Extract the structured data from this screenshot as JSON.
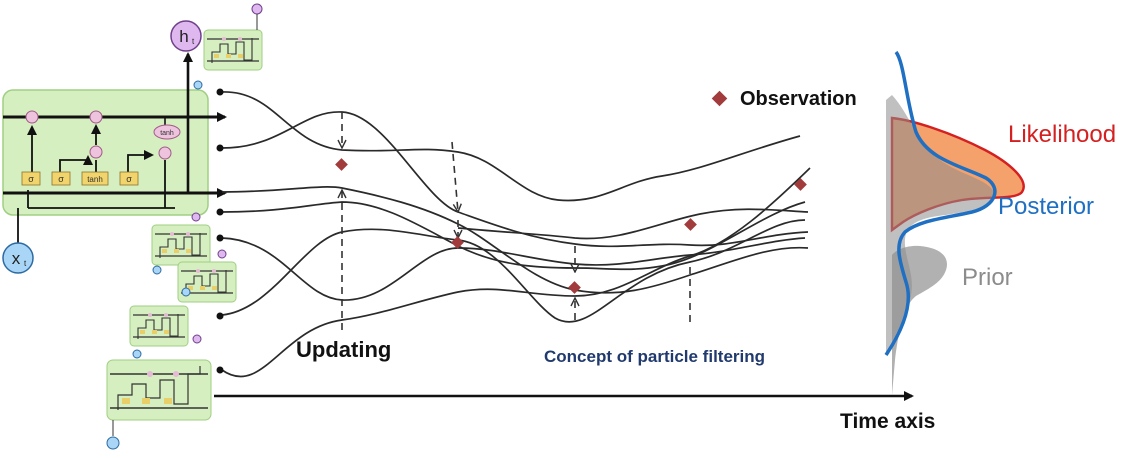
{
  "legend": {
    "observation_label": "Observation",
    "marker_color": "#a23b3b"
  },
  "distributions": {
    "likelihood_label": "Likelihood",
    "posterior_label": "Posterior",
    "prior_label": "Prior",
    "likelihood_color": "#d42020",
    "posterior_color": "#1f6fc2",
    "prior_color": "#8c8c8c"
  },
  "annotations": {
    "updating_label": "Updating",
    "concept_label": "Concept of particle filtering",
    "time_axis_label": "Time axis"
  },
  "lstm": {
    "hidden_state_label": "h",
    "input_label": "x",
    "gate_labels": [
      "σ",
      "σ",
      "tanh",
      "σ"
    ],
    "activation_label": "tanh",
    "cell_color": "#d6efc0"
  }
}
